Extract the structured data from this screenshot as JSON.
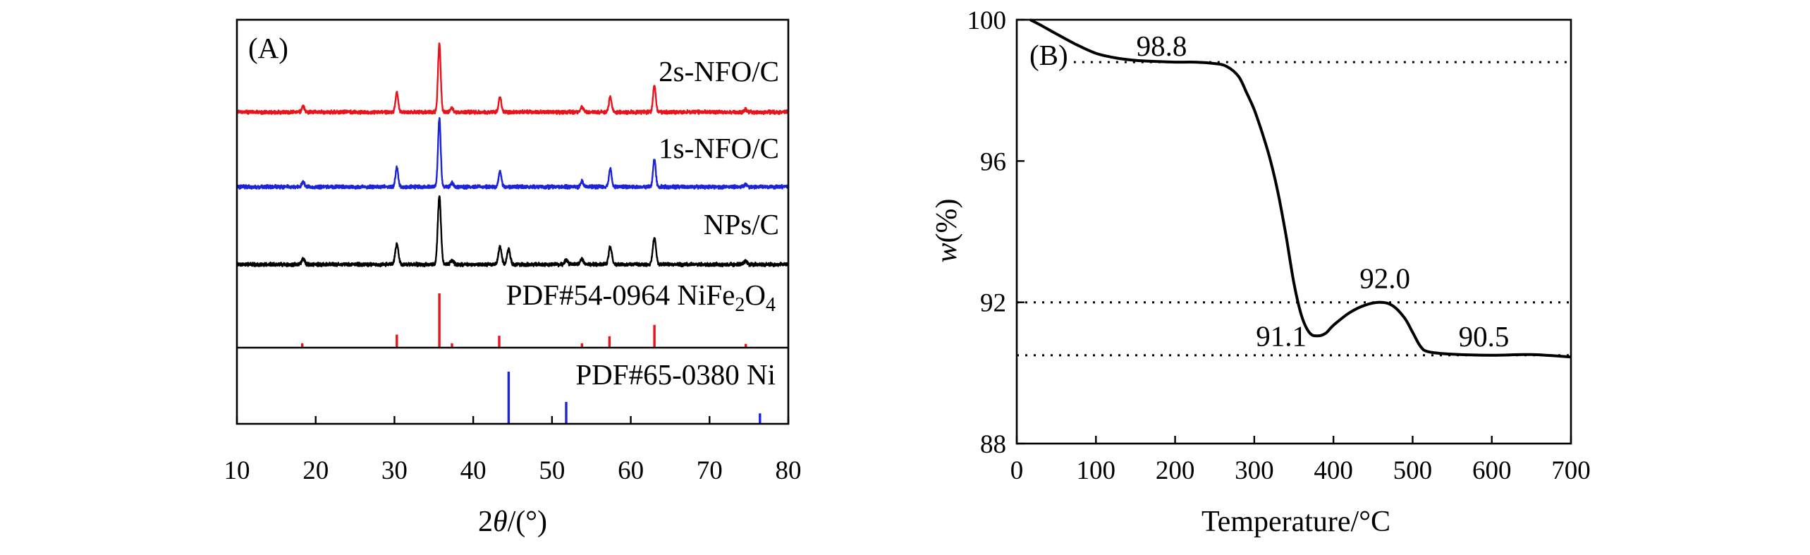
{
  "chart_data": [
    {
      "type": "line",
      "panel": "(A)",
      "xlabel": [
        {
          "t": "2"
        },
        {
          "t": "θ",
          "italic": true
        },
        {
          "t": "/(°)"
        }
      ],
      "xlim": [
        10,
        80
      ],
      "xticks": [
        10,
        20,
        30,
        40,
        50,
        60,
        70,
        80
      ],
      "series": [
        {
          "name": "2s-NFO/C",
          "color": "#e8141c",
          "peaks": [
            [
              18.4,
              8
            ],
            [
              30.3,
              29
            ],
            [
              35.7,
              100
            ],
            [
              37.3,
              6
            ],
            [
              43.4,
              22
            ],
            [
              53.8,
              8
            ],
            [
              57.4,
              22
            ],
            [
              63.0,
              39
            ],
            [
              74.6,
              4
            ]
          ]
        },
        {
          "name": "1s-NFO/C",
          "color": "#1c24d6",
          "peaks": [
            [
              18.4,
              7
            ],
            [
              30.3,
              29
            ],
            [
              35.7,
              100
            ],
            [
              37.3,
              6
            ],
            [
              43.4,
              24
            ],
            [
              53.8,
              8
            ],
            [
              57.4,
              27
            ],
            [
              63.0,
              41
            ],
            [
              74.6,
              4
            ]
          ]
        },
        {
          "name": "NPs/C",
          "color": "#000000",
          "peaks": [
            [
              18.4,
              8
            ],
            [
              30.3,
              30
            ],
            [
              35.7,
              100
            ],
            [
              37.3,
              6
            ],
            [
              43.4,
              26
            ],
            [
              44.5,
              22
            ],
            [
              51.8,
              7
            ],
            [
              53.8,
              8
            ],
            [
              57.4,
              26
            ],
            [
              63.0,
              39
            ],
            [
              74.6,
              5
            ]
          ]
        }
      ],
      "references": [
        {
          "label": [
            {
              "t": "PDF#54-0964 NiFe"
            },
            {
              "t": "2",
              "sub": true
            },
            {
              "t": "O"
            },
            {
              "t": "4",
              "sub": true
            }
          ],
          "color": "#e8141c",
          "sticks": [
            [
              18.3,
              8
            ],
            [
              30.3,
              24
            ],
            [
              35.7,
              100
            ],
            [
              37.3,
              8
            ],
            [
              43.3,
              22
            ],
            [
              53.8,
              8
            ],
            [
              57.3,
              21
            ],
            [
              63.0,
              42
            ],
            [
              74.6,
              7
            ]
          ]
        },
        {
          "label": [
            {
              "t": "PDF#65-0380 Ni"
            }
          ],
          "color": "#1c24d6",
          "sticks": [
            [
              44.5,
              100
            ],
            [
              51.8,
              42
            ],
            [
              76.4,
              20
            ]
          ]
        }
      ]
    },
    {
      "type": "line",
      "panel": "(B)",
      "xlabel": [
        {
          "t": "Temperature/°C"
        }
      ],
      "ylabel": [
        {
          "t": "w",
          "italic": true
        },
        {
          "t": "(%)"
        }
      ],
      "xlim": [
        0,
        700
      ],
      "ylim": [
        88,
        100
      ],
      "xticks": [
        0,
        100,
        200,
        300,
        400,
        500,
        600,
        700
      ],
      "yticks": [
        88,
        92,
        96,
        100
      ],
      "series": [
        {
          "color": "#000000",
          "x": [
            17,
            30,
            50,
            75,
            100,
            125,
            150,
            175,
            200,
            225,
            250,
            265,
            280,
            290,
            300,
            310,
            320,
            330,
            340,
            350,
            360,
            370,
            380,
            390,
            400,
            420,
            440,
            460,
            475,
            490,
            500,
            510,
            520,
            550,
            600,
            650,
            700
          ],
          "y": [
            100,
            99.85,
            99.6,
            99.3,
            99.05,
            98.92,
            98.85,
            98.82,
            98.8,
            98.8,
            98.76,
            98.68,
            98.4,
            97.95,
            97.45,
            96.8,
            96.05,
            95.1,
            93.9,
            92.55,
            91.6,
            91.13,
            91.05,
            91.12,
            91.35,
            91.7,
            91.92,
            92.0,
            91.9,
            91.55,
            91.15,
            90.75,
            90.6,
            90.53,
            90.5,
            90.52,
            90.45
          ]
        }
      ],
      "reference_lines": [
        98.8,
        92.0,
        90.5
      ],
      "annotations": [
        {
          "text": "98.8",
          "x": 183,
          "y": 98.8
        },
        {
          "text": "92.0",
          "x": 465,
          "y": 92.0
        },
        {
          "text": "91.1",
          "x": 375,
          "y": 91.1
        },
        {
          "text": "90.5",
          "x": 590,
          "y": 90.5
        }
      ]
    }
  ]
}
